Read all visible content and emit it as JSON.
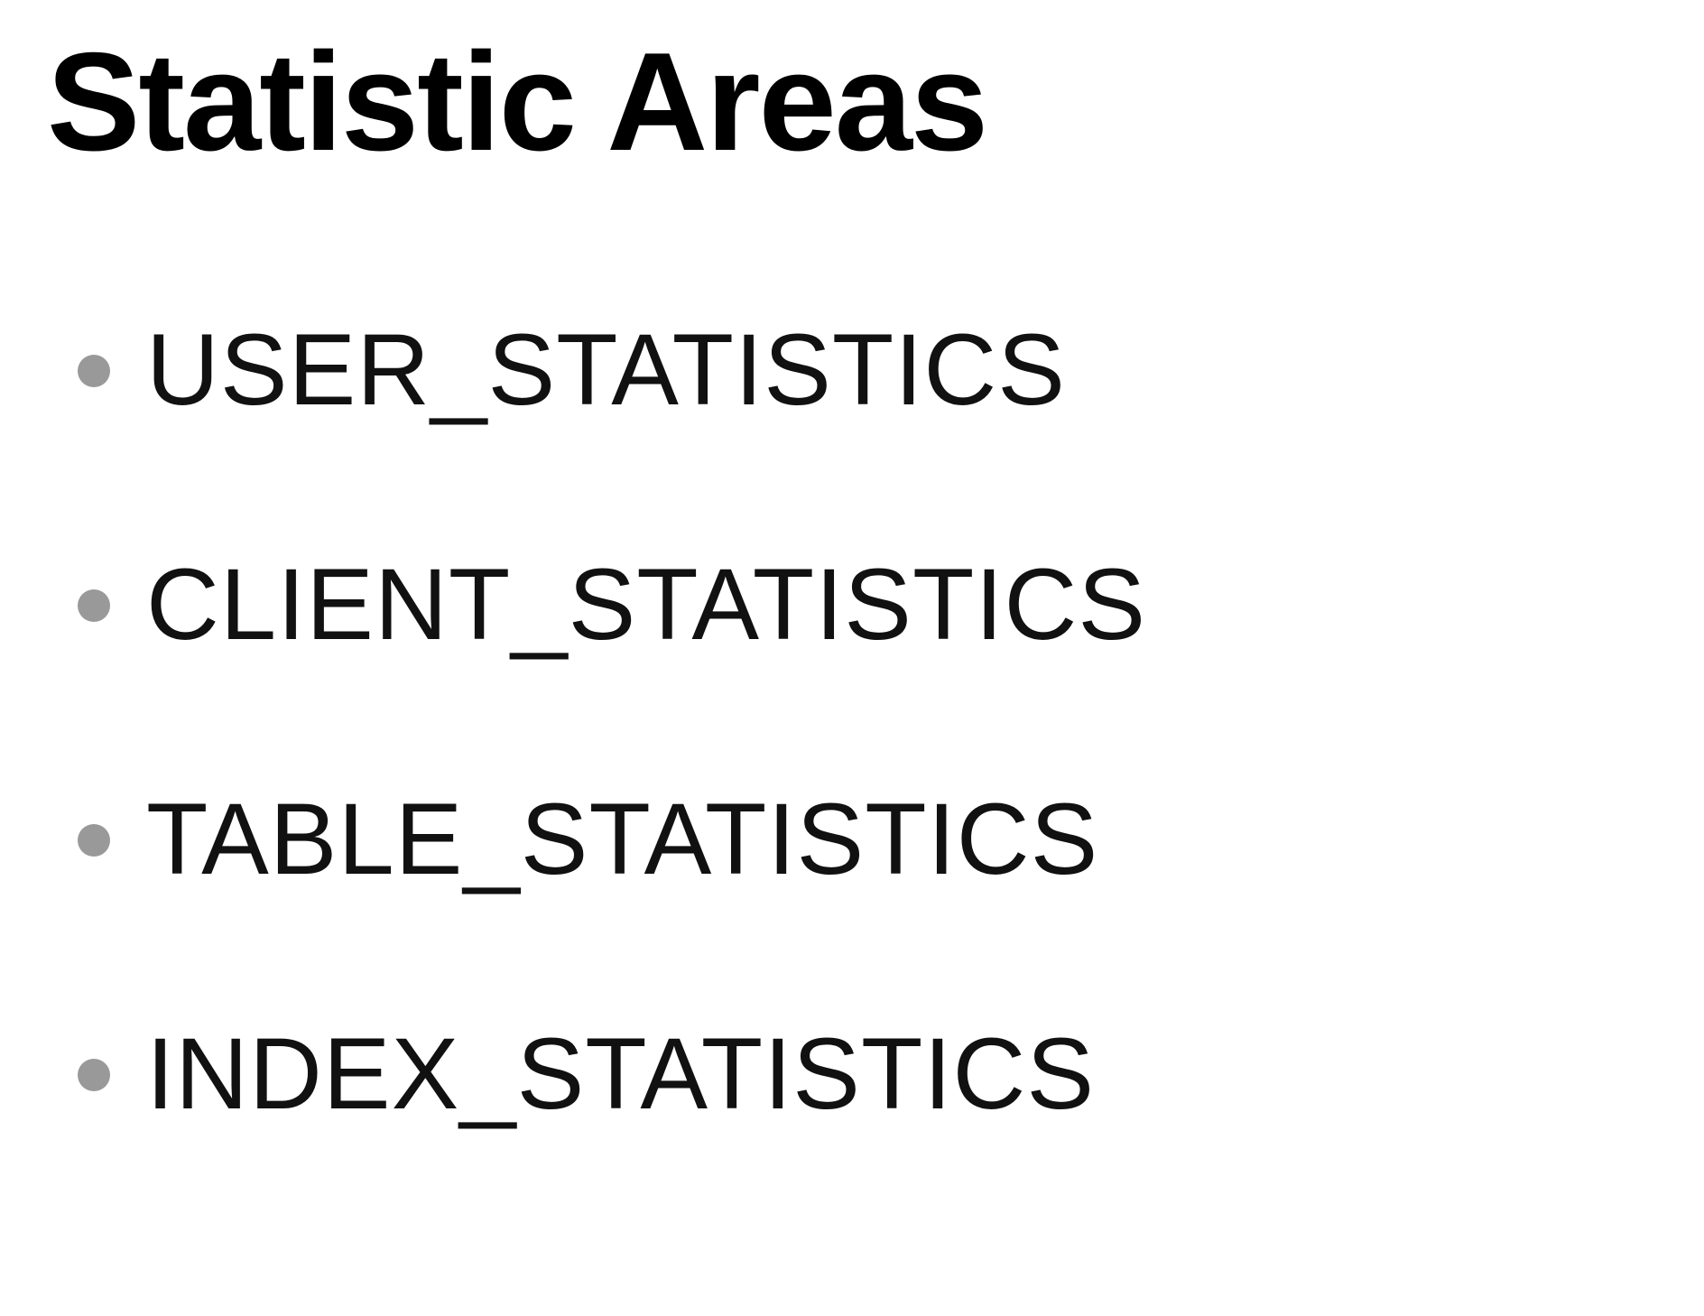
{
  "page": {
    "title": "Statistic Areas"
  },
  "areas": {
    "items": [
      {
        "label": "USER_STATISTICS"
      },
      {
        "label": "CLIENT_STATISTICS"
      },
      {
        "label": "TABLE_STATISTICS"
      },
      {
        "label": "INDEX_STATISTICS"
      }
    ]
  },
  "colors": {
    "text": "#000000",
    "bullet": "#999999",
    "background": "#ffffff"
  },
  "icons": {
    "bullet": "bullet-dot-icon"
  }
}
